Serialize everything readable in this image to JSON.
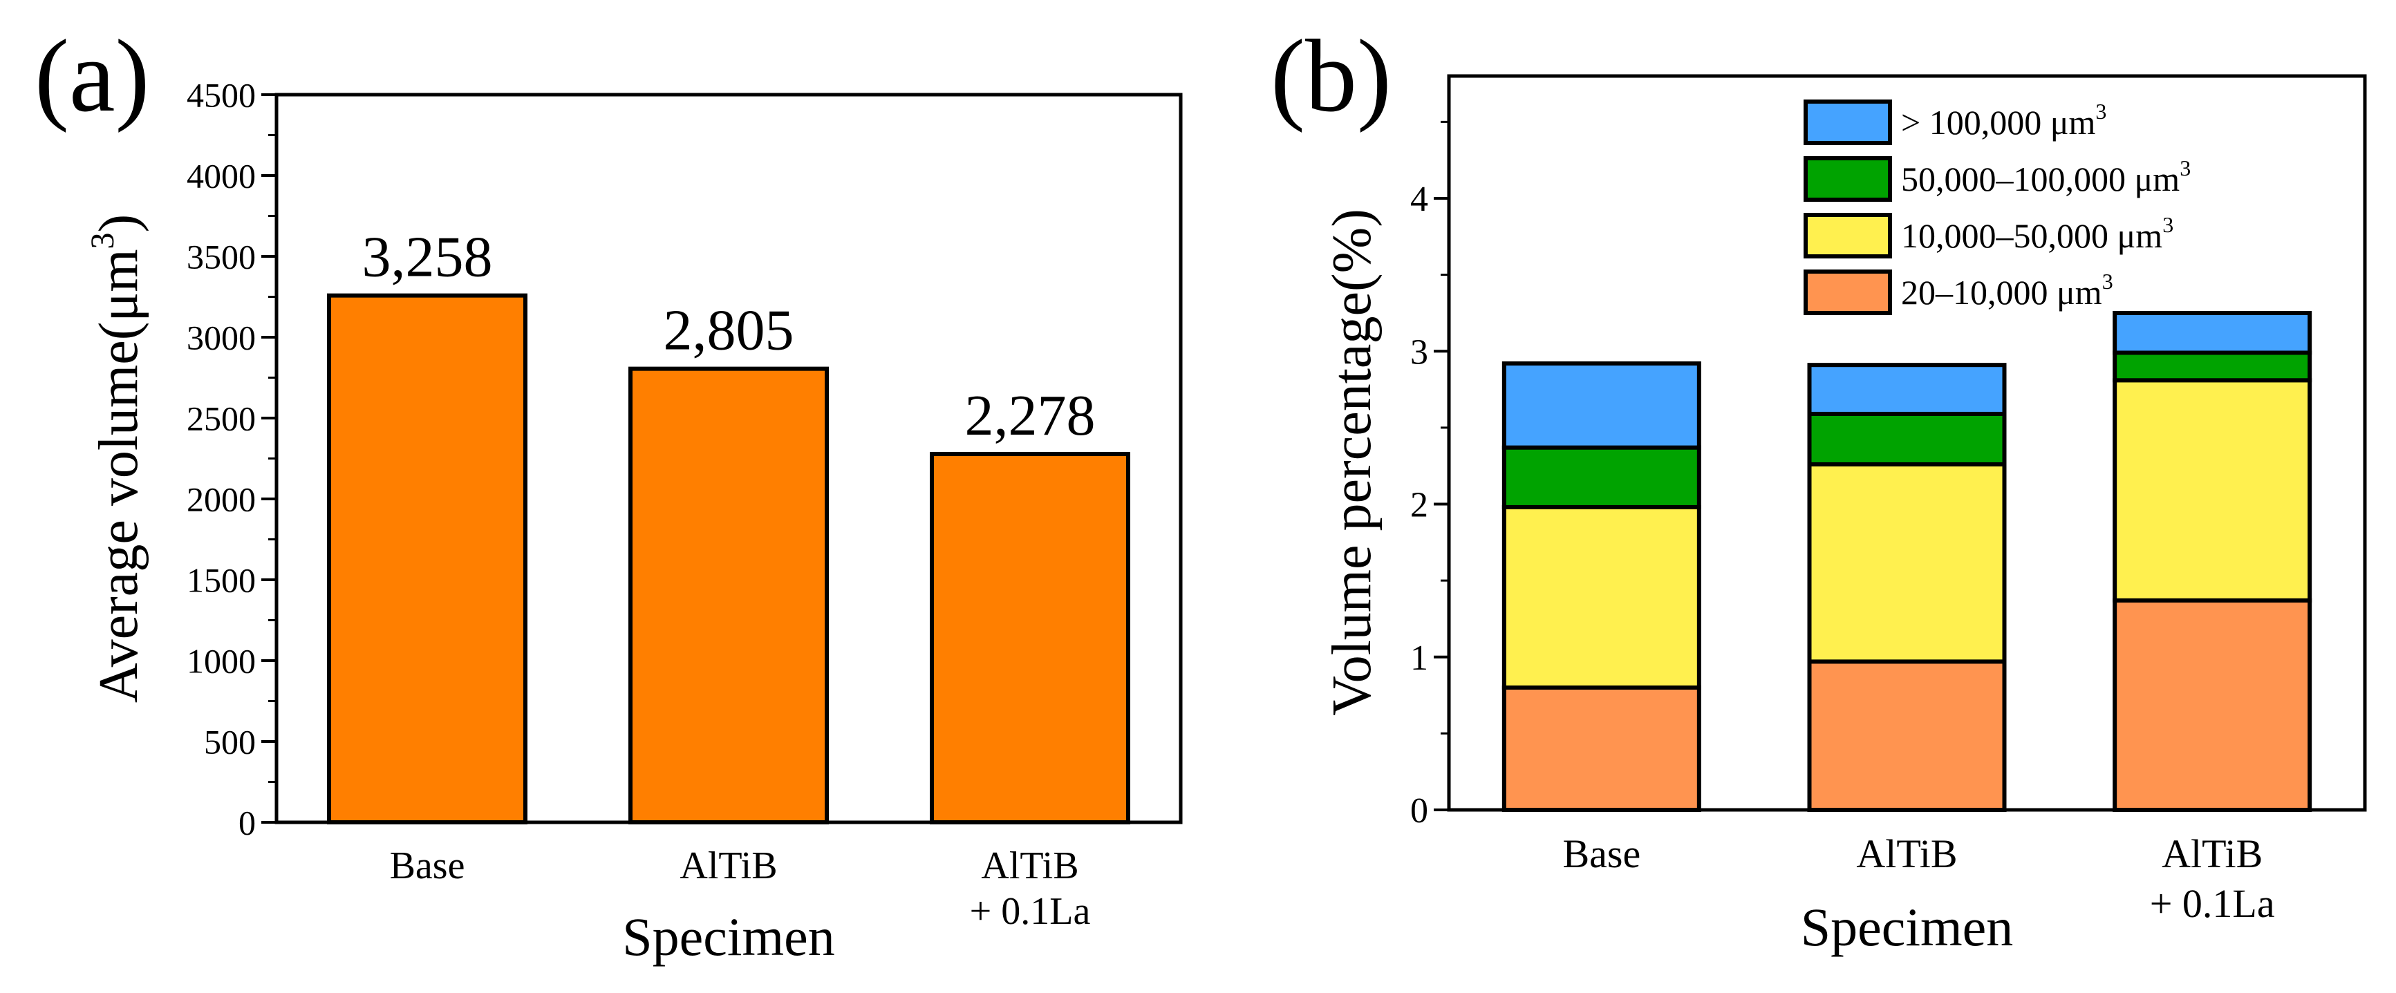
{
  "chart_data": [
    {
      "type": "bar",
      "panel_label": "(a)",
      "title": "",
      "xlabel": "Specimen",
      "ylabel": "Average volume(μm",
      "ylabel_sup": "3",
      "ylabel_close": ")",
      "categories": [
        [
          "Base"
        ],
        [
          "AlTiB"
        ],
        [
          "AlTiB",
          "+ 0.1La"
        ]
      ],
      "values": [
        3258,
        2805,
        2278
      ],
      "data_labels": [
        "3,258",
        "2,805",
        "2,278"
      ],
      "ylim": [
        0,
        4500
      ],
      "yticks": [
        0,
        500,
        1000,
        1500,
        2000,
        2500,
        3000,
        3500,
        4000,
        4500
      ],
      "bar_color": "#FF7F00"
    },
    {
      "type": "bar",
      "stacked": true,
      "panel_label": "(b)",
      "title": "",
      "xlabel": "Specimen",
      "ylabel": "Volume percentage(%)",
      "categories": [
        [
          "Base"
        ],
        [
          "AlTiB"
        ],
        [
          "AlTiB",
          "+ 0.1La"
        ]
      ],
      "ylim": [
        0,
        4.8
      ],
      "yticks": [
        0,
        1,
        2,
        3,
        4
      ],
      "legend_position": "top-right",
      "series": [
        {
          "name": "20–10,000 μm",
          "sup": "3",
          "color": "#FF9450",
          "values": [
            0.8,
            0.97,
            1.37
          ]
        },
        {
          "name": "10,000–50,000 μm",
          "sup": "3",
          "color": "#FFF04F",
          "values": [
            1.18,
            1.29,
            1.44
          ]
        },
        {
          "name": "50,000–100,000 μm",
          "sup": "3",
          "color": "#00A300",
          "values": [
            0.39,
            0.33,
            0.18
          ]
        },
        {
          "name": "> 100,000 μm",
          "sup": "3",
          "color": "#45A3FF",
          "values": [
            0.55,
            0.32,
            0.26
          ]
        }
      ]
    }
  ]
}
